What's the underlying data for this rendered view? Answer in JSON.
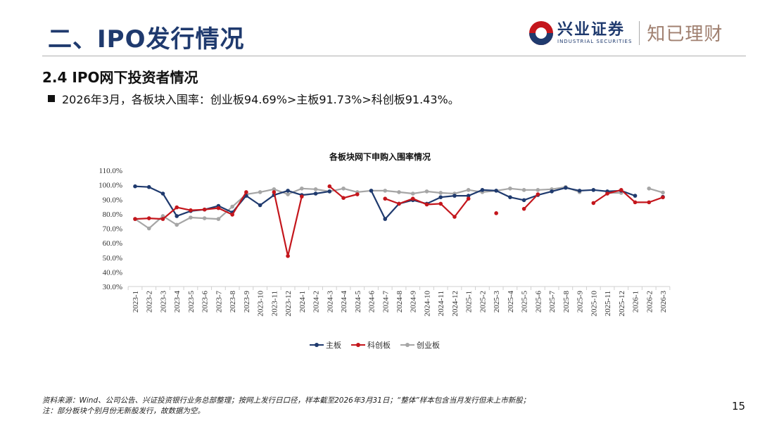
{
  "header": {
    "title": "二、IPO发行情况",
    "logo_cn": "兴业证券",
    "logo_en": "INDUSTRIAL SECURITIES",
    "logo_sub": "知已理财"
  },
  "section": {
    "subtitle": "2.4 IPO网下投资者情况",
    "bullet": "2026年3月，各板块入围率：创业板94.69%>主板91.73%>科创板91.43%。"
  },
  "chart_data": {
    "type": "line",
    "title": "各板块网下申购入围率情况",
    "xlabel": "",
    "ylabel": "",
    "ylim": [
      30,
      110
    ],
    "yticks": [
      "30.0%",
      "40.0%",
      "50.0%",
      "60.0%",
      "70.0%",
      "80.0%",
      "90.0%",
      "100.0%",
      "110.0%"
    ],
    "legend_position": "bottom",
    "grid": false,
    "categories": [
      "2023-1",
      "2023-2",
      "2023-3",
      "2023-4",
      "2023-5",
      "2023-6",
      "2023-7",
      "2023-8",
      "2023-9",
      "2023-10",
      "2023-11",
      "2023-12",
      "2024-1",
      "2024-2",
      "2024-3",
      "2024-4",
      "2024-5",
      "2024-6",
      "2024-7",
      "2024-8",
      "2024-9",
      "2024-10",
      "2024-11",
      "2024-12",
      "2025-1",
      "2025-2",
      "2025-3",
      "2025-4",
      "2025-5",
      "2025-6",
      "2025-7",
      "2025-8",
      "2025-9",
      "2025-10",
      "2025-11",
      "2025-12",
      "2026-1",
      "2026-2",
      "2026-3"
    ],
    "series": [
      {
        "name": "主板",
        "color": "#1f3a6e",
        "values": [
          99,
          98.5,
          94,
          78.5,
          82,
          83,
          85.5,
          81,
          92.5,
          86,
          93,
          96,
          93,
          94,
          95.5,
          null,
          null,
          96,
          76.5,
          87,
          89.5,
          87,
          91.5,
          92.5,
          92.5,
          96.5,
          96,
          91.5,
          89.5,
          93,
          95.5,
          98,
          96,
          96.5,
          95.5,
          96,
          92.5,
          null,
          91.73
        ]
      },
      {
        "name": "科创板",
        "color": "#c4161c",
        "values": [
          76.5,
          77,
          76.5,
          84.5,
          82.5,
          83,
          84,
          79.5,
          95,
          null,
          95,
          51,
          92,
          null,
          99,
          91,
          93.5,
          null,
          90.5,
          87,
          90.5,
          86.5,
          87,
          78,
          90.5,
          null,
          80.5,
          null,
          83.5,
          93.5,
          null,
          null,
          null,
          87.5,
          94,
          96.5,
          88,
          88,
          91.43
        ]
      },
      {
        "name": "创业板",
        "color": "#a6a6a6",
        "values": [
          76.5,
          70,
          78.5,
          72.5,
          77.5,
          77,
          76.5,
          85,
          93.5,
          95,
          97,
          93.5,
          97.5,
          97,
          95.5,
          97.5,
          95,
          96,
          96,
          95,
          94,
          95.5,
          94.5,
          94,
          96.5,
          95,
          96,
          97.5,
          96.5,
          96.5,
          97,
          98.5,
          95,
          null,
          94.5,
          94.5,
          null,
          97.5,
          94.69
        ]
      }
    ]
  },
  "legend": {
    "items": [
      {
        "label": "主板",
        "color": "#1f3a6e"
      },
      {
        "label": "科创板",
        "color": "#c4161c"
      },
      {
        "label": "创业板",
        "color": "#a6a6a6"
      }
    ]
  },
  "footer": {
    "source_line1": "资料来源：Wind、公司公告、兴证投资银行业务总部整理；按网上发行日口径，样本截至2026年3月31日；“整体”样本包含当月发行但未上市新股；",
    "source_line2": "注：部分板块个别月份无新股发行，故数据为空。",
    "page_number": "15"
  }
}
